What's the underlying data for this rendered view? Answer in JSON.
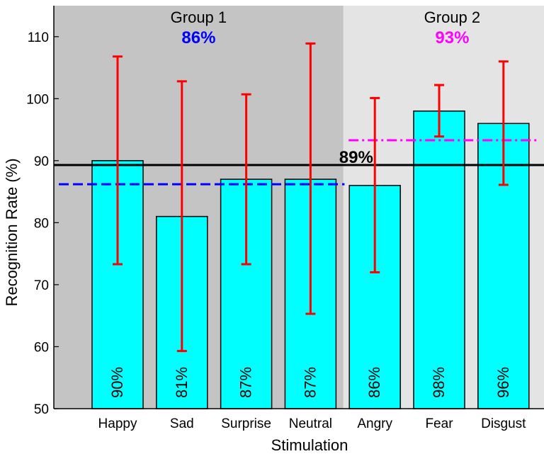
{
  "chart_data": {
    "type": "bar",
    "xlabel": "Stimulation",
    "ylabel": "Recognition Rate (%)",
    "ylim": [
      50,
      115
    ],
    "yticks": [
      50,
      60,
      70,
      80,
      90,
      100,
      110
    ],
    "categories": [
      "Happy",
      "Sad",
      "Surprise",
      "Neutral",
      "Angry",
      "Fear",
      "Disgust"
    ],
    "values": [
      90,
      81,
      87,
      87,
      86,
      98,
      96
    ],
    "value_labels": [
      "90%",
      "81%",
      "87%",
      "87%",
      "86%",
      "98%",
      "96%"
    ],
    "error_bars": [
      {
        "low": 73.3,
        "high": 106.8
      },
      {
        "low": 59.3,
        "high": 102.8
      },
      {
        "low": 73.3,
        "high": 100.7
      },
      {
        "low": 65.3,
        "high": 108.9
      },
      {
        "low": 72.0,
        "high": 100.1
      },
      {
        "low": 93.9,
        "high": 102.2
      },
      {
        "low": 86.1,
        "high": 106.0
      }
    ],
    "groups": [
      {
        "label": "Group 1",
        "mean_label": "86%",
        "mean": 86.2,
        "categories": [
          "Happy",
          "Sad",
          "Surprise",
          "Neutral"
        ],
        "background": "#c4c4c4",
        "line_color": "#0000ff",
        "line_style": "dashed"
      },
      {
        "label": "Group 2",
        "mean_label": "93%",
        "mean": 93.3,
        "categories": [
          "Angry",
          "Fear",
          "Disgust"
        ],
        "background": "#e4e4e4",
        "line_color": "#ff00ff",
        "line_style": "dash-dot"
      }
    ],
    "overall": {
      "label": "89%",
      "value": 89.3,
      "line_color": "#000000"
    },
    "bar_color": "#00ffff",
    "error_color": "#ff0000",
    "grid": false
  }
}
